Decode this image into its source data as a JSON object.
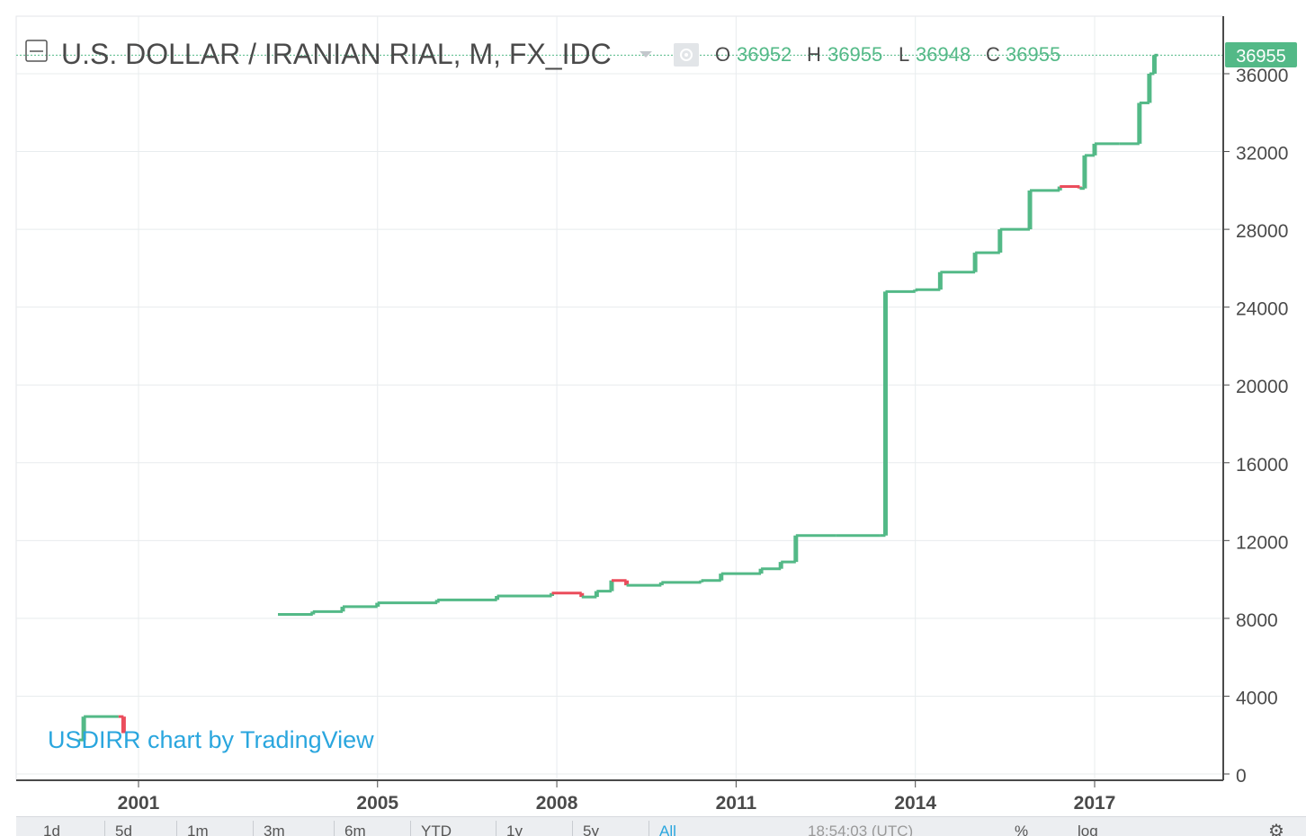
{
  "header": {
    "symbol_title": "U.S. DOLLAR / IRANIAN RIAL, M, FX_IDC",
    "ohlc": {
      "o_label": "O",
      "o_value": "36952",
      "h_label": "H",
      "h_value": "36955",
      "l_label": "L",
      "l_value": "36948",
      "c_label": "C",
      "c_value": "36955"
    }
  },
  "last_price_badge": "36955",
  "watermark": "USDIRR chart by TradingView",
  "colors": {
    "up": "#53b987",
    "down": "#eb4d5c",
    "grid": "#e8ecee",
    "axis": "#4a4a4a",
    "watermark": "#2aa6de",
    "badge": "#53b987"
  },
  "toolbar": {
    "buttons": [
      "1d",
      "5d",
      "1m",
      "3m",
      "6m",
      "YTD",
      "1y",
      "5y",
      "All"
    ],
    "time": "18:54:03 (UTC)",
    "percent": "%",
    "log": "log"
  },
  "chart_data": {
    "type": "line",
    "title": "U.S. DOLLAR / IRANIAN RIAL, M, FX_IDC",
    "xlabel": "",
    "ylabel": "",
    "x_ticks": [
      "2001",
      "2005",
      "2008",
      "2011",
      "2014",
      "2017"
    ],
    "y_ticks": [
      0,
      4000,
      8000,
      12000,
      16000,
      20000,
      24000,
      28000,
      32000,
      36000
    ],
    "ylim": [
      0,
      37500
    ],
    "xlim": [
      "2000-01",
      "2018-08"
    ],
    "grid": true,
    "series": [
      {
        "values": [
          {
            "x": "2000-01",
            "y": 1750
          },
          {
            "x": "2000-02",
            "y": 2950
          },
          {
            "x": "2000-09",
            "y": 2950
          },
          {
            "x": "2000-10",
            "y": 2100
          },
          {
            "x": "2003-05",
            "y": 8200
          },
          {
            "x": "2003-12",
            "y": 8350
          },
          {
            "x": "2004-06",
            "y": 8600
          },
          {
            "x": "2005-01",
            "y": 8800
          },
          {
            "x": "2006-01",
            "y": 8950
          },
          {
            "x": "2007-01",
            "y": 9150
          },
          {
            "x": "2007-12",
            "y": 9300
          },
          {
            "x": "2008-06",
            "y": 9100
          },
          {
            "x": "2008-09",
            "y": 9400
          },
          {
            "x": "2008-12",
            "y": 9950
          },
          {
            "x": "2009-03",
            "y": 9700
          },
          {
            "x": "2009-10",
            "y": 9850
          },
          {
            "x": "2010-06",
            "y": 9950
          },
          {
            "x": "2010-10",
            "y": 10300
          },
          {
            "x": "2011-06",
            "y": 10550
          },
          {
            "x": "2011-10",
            "y": 10900
          },
          {
            "x": "2012-01",
            "y": 12260
          },
          {
            "x": "2012-09",
            "y": 12260
          },
          {
            "x": "2013-06",
            "y": 12260
          },
          {
            "x": "2013-07",
            "y": 24800
          },
          {
            "x": "2014-01",
            "y": 24900
          },
          {
            "x": "2014-06",
            "y": 25800
          },
          {
            "x": "2015-01",
            "y": 26800
          },
          {
            "x": "2015-06",
            "y": 28000
          },
          {
            "x": "2015-12",
            "y": 30000
          },
          {
            "x": "2016-06",
            "y": 30200
          },
          {
            "x": "2016-10",
            "y": 30100
          },
          {
            "x": "2016-11",
            "y": 31800
          },
          {
            "x": "2017-01",
            "y": 32400
          },
          {
            "x": "2017-06",
            "y": 32400
          },
          {
            "x": "2017-10",
            "y": 34500
          },
          {
            "x": "2017-12",
            "y": 36000
          },
          {
            "x": "2018-01",
            "y": 36955
          }
        ]
      }
    ]
  }
}
